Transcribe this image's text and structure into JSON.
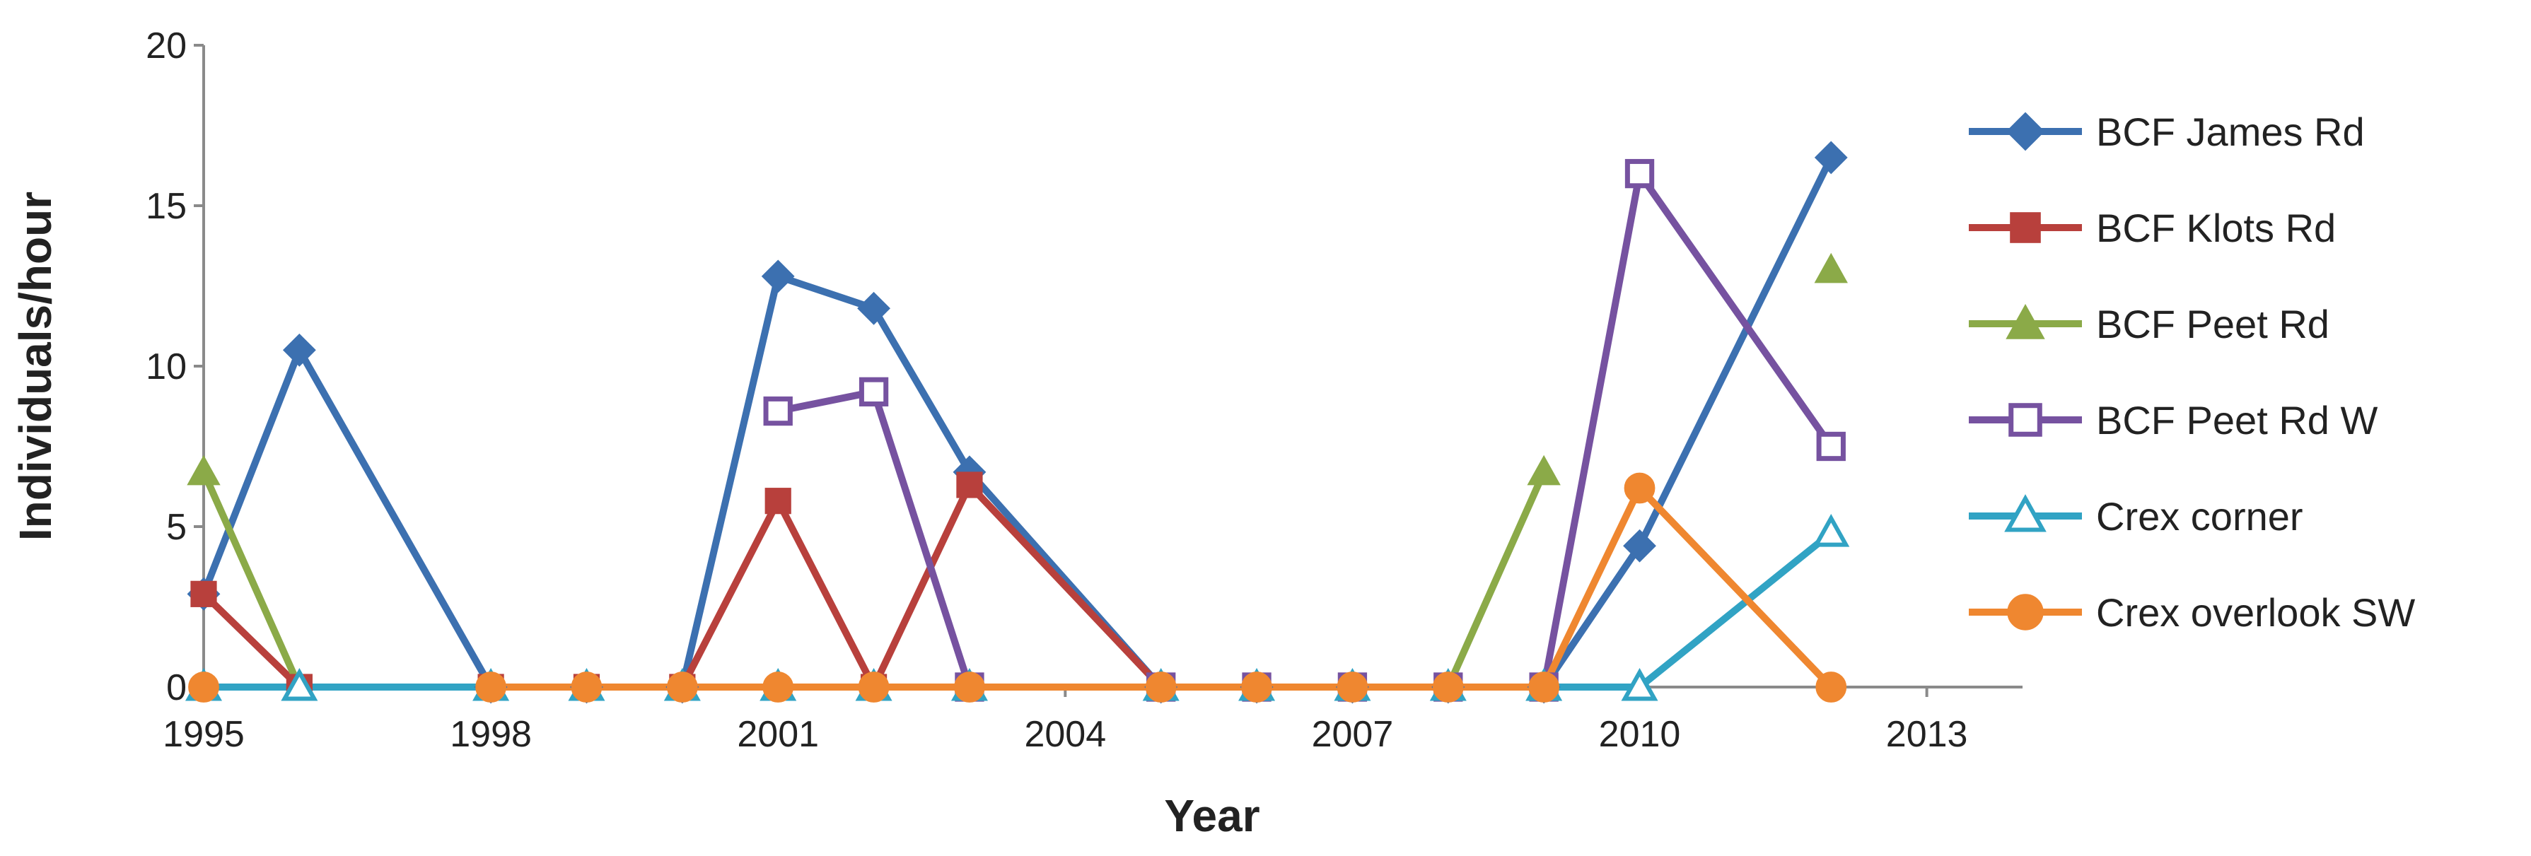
{
  "chart_data": {
    "type": "line",
    "title": "",
    "xlabel": "Year",
    "ylabel": "Individuals/hour",
    "xlim": [
      1995,
      2014
    ],
    "ylim": [
      0,
      20
    ],
    "x_ticks": [
      1995,
      1998,
      2001,
      2004,
      2007,
      2010,
      2013
    ],
    "y_ticks": [
      0,
      5,
      10,
      15,
      20
    ],
    "grid": false,
    "legend_position": "right",
    "series": [
      {
        "name": "BCF James Rd",
        "color": "#3C70B0",
        "marker": "diamond-filled",
        "points": [
          [
            1995,
            2.9
          ],
          [
            1996,
            10.5
          ],
          [
            1998,
            0
          ],
          [
            1999,
            0
          ],
          [
            2000,
            0
          ],
          [
            2001,
            12.8
          ],
          [
            2002,
            11.8
          ],
          [
            2003,
            6.7
          ],
          [
            2005,
            0
          ],
          [
            2006,
            0
          ],
          [
            2007,
            0
          ],
          [
            2008,
            0
          ],
          [
            2009,
            0
          ],
          [
            2010,
            4.4
          ],
          [
            2012,
            16.5
          ]
        ]
      },
      {
        "name": "BCF Klots Rd",
        "color": "#B8403C",
        "marker": "square-filled",
        "points": [
          [
            1995,
            2.9
          ],
          [
            1996,
            0
          ],
          [
            1998,
            0
          ],
          [
            1999,
            0
          ],
          [
            2000,
            0
          ],
          [
            2001,
            5.8
          ],
          [
            2002,
            0
          ],
          [
            2003,
            6.3
          ],
          [
            2005,
            0
          ],
          [
            2006,
            0
          ],
          [
            2007,
            0
          ],
          [
            2008,
            0
          ],
          [
            2009,
            0
          ]
        ]
      },
      {
        "name": "BCF Peet Rd",
        "color": "#8BAA48",
        "marker": "triangle-filled",
        "points": [
          [
            1995,
            6.7
          ],
          [
            1996,
            0
          ],
          [
            1998,
            0
          ],
          [
            1999,
            0
          ],
          [
            2000,
            0
          ],
          [
            2001,
            0
          ],
          [
            2002,
            0
          ],
          [
            2003,
            0
          ],
          [
            2005,
            0
          ],
          [
            2006,
            0
          ],
          [
            2007,
            0
          ],
          [
            2008,
            0
          ],
          [
            2009,
            6.7
          ],
          null,
          [
            2012,
            13.0
          ]
        ]
      },
      {
        "name": "BCF Peet Rd W",
        "color": "#7652A0",
        "marker": "square-open",
        "points": [
          [
            2001,
            8.6
          ],
          [
            2002,
            9.2
          ],
          [
            2003,
            0
          ],
          [
            2005,
            0
          ],
          [
            2006,
            0
          ],
          [
            2007,
            0
          ],
          [
            2008,
            0
          ],
          [
            2009,
            0
          ],
          [
            2010,
            16.0
          ],
          [
            2012,
            7.5
          ]
        ]
      },
      {
        "name": "Crex corner",
        "color": "#31A3C4",
        "marker": "triangle-open",
        "points": [
          [
            1995,
            0
          ],
          [
            1996,
            0
          ],
          [
            1998,
            0
          ],
          [
            1999,
            0
          ],
          [
            2000,
            0
          ],
          [
            2001,
            0
          ],
          [
            2002,
            0
          ],
          [
            2003,
            0
          ],
          [
            2005,
            0
          ],
          [
            2006,
            0
          ],
          [
            2007,
            0
          ],
          [
            2008,
            0
          ],
          [
            2009,
            0
          ],
          [
            2010,
            0
          ],
          [
            2012,
            4.8
          ]
        ]
      },
      {
        "name": "Crex overlook SW",
        "color": "#EF8730",
        "marker": "circle-filled",
        "points": [
          [
            1995,
            0
          ],
          null,
          [
            1998,
            0
          ],
          [
            1999,
            0
          ],
          [
            2000,
            0
          ],
          [
            2001,
            0
          ],
          [
            2002,
            0
          ],
          [
            2003,
            0
          ],
          [
            2005,
            0
          ],
          [
            2006,
            0
          ],
          [
            2007,
            0
          ],
          [
            2008,
            0
          ],
          [
            2009,
            0
          ],
          [
            2010,
            6.2
          ],
          [
            2012,
            0
          ]
        ]
      }
    ]
  }
}
